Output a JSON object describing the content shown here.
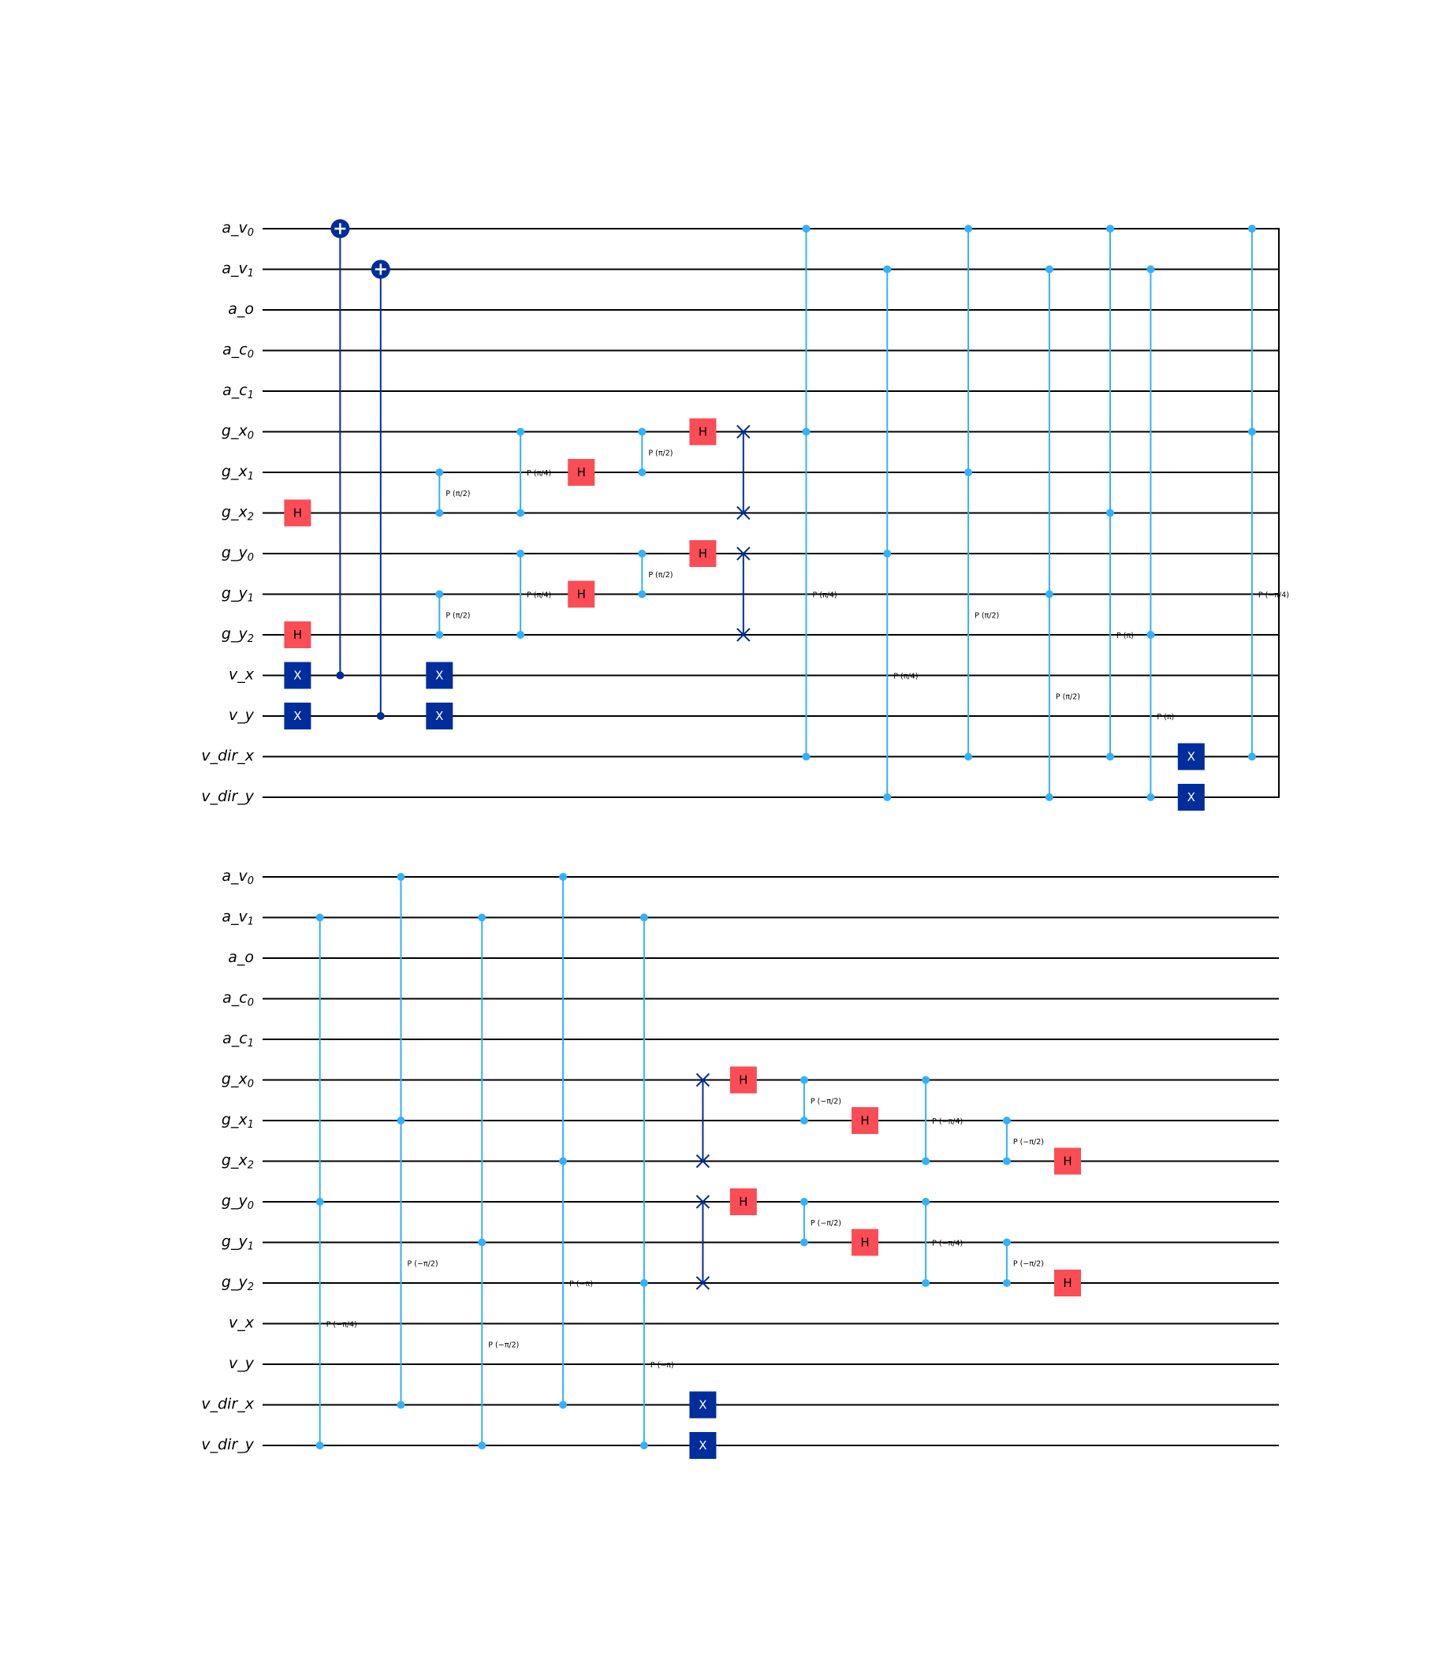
{
  "colors": {
    "wire": "#000000",
    "h_gate": "#fa4d56",
    "x_gate": "#002d9c",
    "cnot": "#002d9c",
    "swap": "#002d9c",
    "phase": "#33b1ff",
    "gate_text": "#ffffff",
    "h_text": "#000000"
  },
  "qubits": [
    {
      "base": "a_v",
      "sub": "0"
    },
    {
      "base": "a_v",
      "sub": "1"
    },
    {
      "base": "a_o",
      "sub": ""
    },
    {
      "base": "a_c",
      "sub": "0"
    },
    {
      "base": "a_c",
      "sub": "1"
    },
    {
      "base": "g_x",
      "sub": "0"
    },
    {
      "base": "g_x",
      "sub": "1"
    },
    {
      "base": "g_x",
      "sub": "2"
    },
    {
      "base": "g_y",
      "sub": "0"
    },
    {
      "base": "g_y",
      "sub": "1"
    },
    {
      "base": "g_y",
      "sub": "2"
    },
    {
      "base": "v_x",
      "sub": ""
    },
    {
      "base": "v_y",
      "sub": ""
    },
    {
      "base": "v_dir_x",
      "sub": ""
    },
    {
      "base": "v_dir_y",
      "sub": ""
    }
  ],
  "panels": [
    {
      "barrier_end": true,
      "gates": [
        {
          "type": "h",
          "col": 0.3,
          "q": 7,
          "label": "H"
        },
        {
          "type": "h",
          "col": 0.3,
          "q": 10,
          "label": "H"
        },
        {
          "type": "x",
          "col": 0.3,
          "q": 11,
          "label": "X"
        },
        {
          "type": "x",
          "col": 0.3,
          "q": 12,
          "label": "X"
        },
        {
          "type": "cnot",
          "col": 1.35,
          "ctrl": 11,
          "tgt": 0
        },
        {
          "type": "cnot",
          "col": 2.35,
          "ctrl": 12,
          "tgt": 1
        },
        {
          "type": "cp",
          "col": 3.8,
          "qs": [
            6,
            7
          ],
          "label": "P (π/2)"
        },
        {
          "type": "cp",
          "col": 3.8,
          "qs": [
            9,
            10
          ],
          "label": "P (π/2)"
        },
        {
          "type": "x",
          "col": 3.8,
          "q": 11,
          "label": "X"
        },
        {
          "type": "x",
          "col": 3.8,
          "q": 12,
          "label": "X"
        },
        {
          "type": "cp",
          "col": 5.8,
          "qs": [
            5,
            7
          ],
          "label": "P (π/4)"
        },
        {
          "type": "cp",
          "col": 5.8,
          "qs": [
            8,
            10
          ],
          "label": "P (π/4)"
        },
        {
          "type": "h",
          "col": 7.3,
          "q": 6,
          "label": "H"
        },
        {
          "type": "h",
          "col": 7.3,
          "q": 9,
          "label": "H"
        },
        {
          "type": "cp",
          "col": 8.8,
          "qs": [
            5,
            6
          ],
          "label": "P (π/2)"
        },
        {
          "type": "cp",
          "col": 8.8,
          "qs": [
            8,
            9
          ],
          "label": "P (π/2)"
        },
        {
          "type": "h",
          "col": 10.3,
          "q": 5,
          "label": "H"
        },
        {
          "type": "h",
          "col": 10.3,
          "q": 8,
          "label": "H"
        },
        {
          "type": "swap",
          "col": 11.3,
          "qs": [
            5,
            7
          ]
        },
        {
          "type": "swap",
          "col": 11.3,
          "qs": [
            8,
            10
          ]
        },
        {
          "type": "cp",
          "col": 12.85,
          "qs": [
            0,
            5,
            13
          ],
          "label": "P (π/4)"
        },
        {
          "type": "cp",
          "col": 14.85,
          "qs": [
            1,
            8,
            14
          ],
          "label": "P (π/4)"
        },
        {
          "type": "cp",
          "col": 16.85,
          "qs": [
            0,
            6,
            13
          ],
          "label": "P (π/2)"
        },
        {
          "type": "cp",
          "col": 18.85,
          "qs": [
            1,
            9,
            14
          ],
          "label": "P (π/2)"
        },
        {
          "type": "cp",
          "col": 20.35,
          "qs": [
            0,
            7,
            13
          ],
          "label": "P (π)"
        },
        {
          "type": "cp",
          "col": 21.35,
          "qs": [
            1,
            10,
            14
          ],
          "label": "P (π)"
        },
        {
          "type": "x",
          "col": 22.35,
          "q": 13,
          "label": "X"
        },
        {
          "type": "x",
          "col": 22.35,
          "q": 14,
          "label": "X"
        },
        {
          "type": "cp",
          "col": 23.85,
          "qs": [
            0,
            5,
            13
          ],
          "label": "P (−π/4)"
        }
      ]
    },
    {
      "barrier_end": false,
      "gates": [
        {
          "type": "cp",
          "col": 0.85,
          "qs": [
            1,
            8,
            14
          ],
          "label": "P (−π/4)"
        },
        {
          "type": "cp",
          "col": 2.85,
          "qs": [
            0,
            6,
            13
          ],
          "label": "P (−π/2)"
        },
        {
          "type": "cp",
          "col": 4.85,
          "qs": [
            1,
            9,
            14
          ],
          "label": "P (−π/2)"
        },
        {
          "type": "cp",
          "col": 6.85,
          "qs": [
            0,
            7,
            13
          ],
          "label": "P (−π)"
        },
        {
          "type": "cp",
          "col": 8.85,
          "qs": [
            1,
            10,
            14
          ],
          "label": "P (−π)"
        },
        {
          "type": "x",
          "col": 10.3,
          "q": 13,
          "label": "X"
        },
        {
          "type": "x",
          "col": 10.3,
          "q": 14,
          "label": "X"
        },
        {
          "type": "swap",
          "col": 10.3,
          "qs": [
            5,
            7
          ]
        },
        {
          "type": "swap",
          "col": 10.3,
          "qs": [
            8,
            10
          ]
        },
        {
          "type": "h",
          "col": 11.3,
          "q": 5,
          "label": "H"
        },
        {
          "type": "h",
          "col": 11.3,
          "q": 8,
          "label": "H"
        },
        {
          "type": "cp",
          "col": 12.8,
          "qs": [
            5,
            6
          ],
          "label": "P (−π/2)"
        },
        {
          "type": "cp",
          "col": 12.8,
          "qs": [
            8,
            9
          ],
          "label": "P (−π/2)"
        },
        {
          "type": "h",
          "col": 14.3,
          "q": 6,
          "label": "H"
        },
        {
          "type": "h",
          "col": 14.3,
          "q": 9,
          "label": "H"
        },
        {
          "type": "cp",
          "col": 15.8,
          "qs": [
            5,
            7
          ],
          "label": "P (−π/4)"
        },
        {
          "type": "cp",
          "col": 15.8,
          "qs": [
            8,
            10
          ],
          "label": "P (−π/4)"
        },
        {
          "type": "cp",
          "col": 17.8,
          "qs": [
            6,
            7
          ],
          "label": "P (−π/2)"
        },
        {
          "type": "cp",
          "col": 17.8,
          "qs": [
            9,
            10
          ],
          "label": "P (−π/2)"
        },
        {
          "type": "h",
          "col": 19.3,
          "q": 7,
          "label": "H"
        },
        {
          "type": "h",
          "col": 19.3,
          "q": 10,
          "label": "H"
        }
      ]
    }
  ]
}
